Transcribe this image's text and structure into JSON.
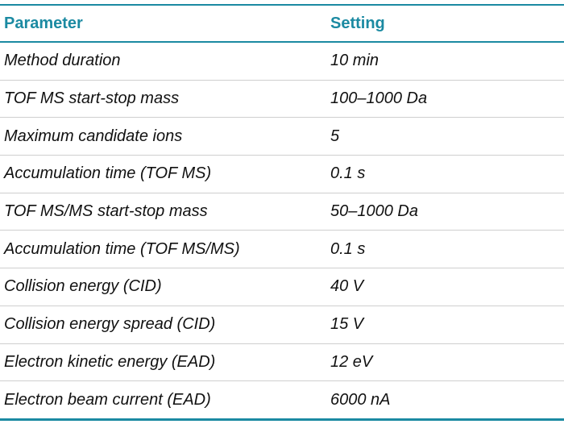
{
  "table": {
    "header": [
      "Parameter",
      "Setting"
    ],
    "rows": [
      [
        "Method duration",
        "10 min"
      ],
      [
        "TOF MS start-stop mass",
        "100–1000 Da"
      ],
      [
        "Maximum candidate ions",
        "5"
      ],
      [
        "Accumulation time (TOF MS)",
        "0.1 s"
      ],
      [
        "TOF MS/MS start-stop mass",
        "50–1000 Da"
      ],
      [
        "Accumulation time (TOF MS/MS)",
        "0.1 s"
      ],
      [
        "Collision energy (CID)",
        "40 V"
      ],
      [
        "Collision energy spread (CID)",
        "15 V"
      ],
      [
        "Electron kinetic energy (EAD)",
        "12 eV"
      ],
      [
        "Electron beam current (EAD)",
        "6000 nA"
      ]
    ]
  }
}
